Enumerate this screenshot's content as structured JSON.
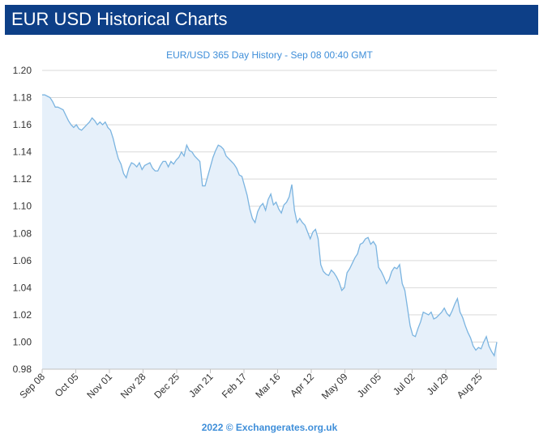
{
  "header": {
    "title": "EUR USD Historical Charts"
  },
  "colors": {
    "header_bg": "#0d3f87",
    "line": "#7bb4e0",
    "area": "#e6f0fa",
    "grid": "#d9d9d9",
    "accent_text": "#3e8ed9"
  },
  "chart_data": {
    "type": "area",
    "title": "EUR/USD 365 Day History - Sep 08 00:40 GMT",
    "footer": "2022 © Exchangerates.org.uk",
    "ylim": [
      0.98,
      1.2
    ],
    "y_ticks": [
      "0.98",
      "1.00",
      "1.02",
      "1.04",
      "1.06",
      "1.08",
      "1.10",
      "1.12",
      "1.14",
      "1.16",
      "1.18",
      "1.20"
    ],
    "x_ticks": [
      "Sep 08",
      "Oct 05",
      "Nov 01",
      "Nov 28",
      "Dec 25",
      "Jan 21",
      "Feb 17",
      "Mar 16",
      "Apr 12",
      "May 09",
      "Jun 05",
      "Jul 02",
      "Jul 29",
      "Aug 25"
    ],
    "grid": true,
    "series": [
      {
        "values": [
          1.182,
          1.182,
          1.181,
          1.18,
          1.177,
          1.173,
          1.173,
          1.172,
          1.171,
          1.167,
          1.163,
          1.16,
          1.158,
          1.16,
          1.157,
          1.156,
          1.158,
          1.16,
          1.162,
          1.165,
          1.163,
          1.16,
          1.162,
          1.16,
          1.162,
          1.158,
          1.156,
          1.15,
          1.142,
          1.135,
          1.131,
          1.124,
          1.121,
          1.128,
          1.132,
          1.131,
          1.129,
          1.132,
          1.127,
          1.13,
          1.131,
          1.132,
          1.128,
          1.126,
          1.126,
          1.13,
          1.133,
          1.133,
          1.129,
          1.133,
          1.131,
          1.134,
          1.136,
          1.14,
          1.137,
          1.145,
          1.141,
          1.14,
          1.137,
          1.135,
          1.133,
          1.115,
          1.115,
          1.122,
          1.129,
          1.136,
          1.141,
          1.145,
          1.144,
          1.142,
          1.137,
          1.135,
          1.133,
          1.131,
          1.128,
          1.123,
          1.122,
          1.115,
          1.108,
          1.098,
          1.091,
          1.088,
          1.096,
          1.1,
          1.102,
          1.097,
          1.105,
          1.109,
          1.101,
          1.103,
          1.098,
          1.095,
          1.101,
          1.103,
          1.107,
          1.116,
          1.097,
          1.088,
          1.091,
          1.088,
          1.086,
          1.081,
          1.076,
          1.081,
          1.083,
          1.076,
          1.057,
          1.052,
          1.05,
          1.049,
          1.053,
          1.051,
          1.048,
          1.044,
          1.038,
          1.04,
          1.051,
          1.054,
          1.058,
          1.062,
          1.065,
          1.072,
          1.073,
          1.076,
          1.077,
          1.072,
          1.074,
          1.071,
          1.055,
          1.052,
          1.048,
          1.043,
          1.046,
          1.052,
          1.055,
          1.054,
          1.057,
          1.043,
          1.038,
          1.025,
          1.012,
          1.005,
          1.004,
          1.01,
          1.015,
          1.022,
          1.021,
          1.02,
          1.022,
          1.017,
          1.018,
          1.02,
          1.022,
          1.025,
          1.021,
          1.019,
          1.023,
          1.028,
          1.032,
          1.022,
          1.018,
          1.012,
          1.007,
          1.003,
          0.997,
          0.994,
          0.996,
          0.995,
          1.0,
          1.004,
          0.997,
          0.993,
          0.99,
          1.0
        ]
      }
    ]
  }
}
